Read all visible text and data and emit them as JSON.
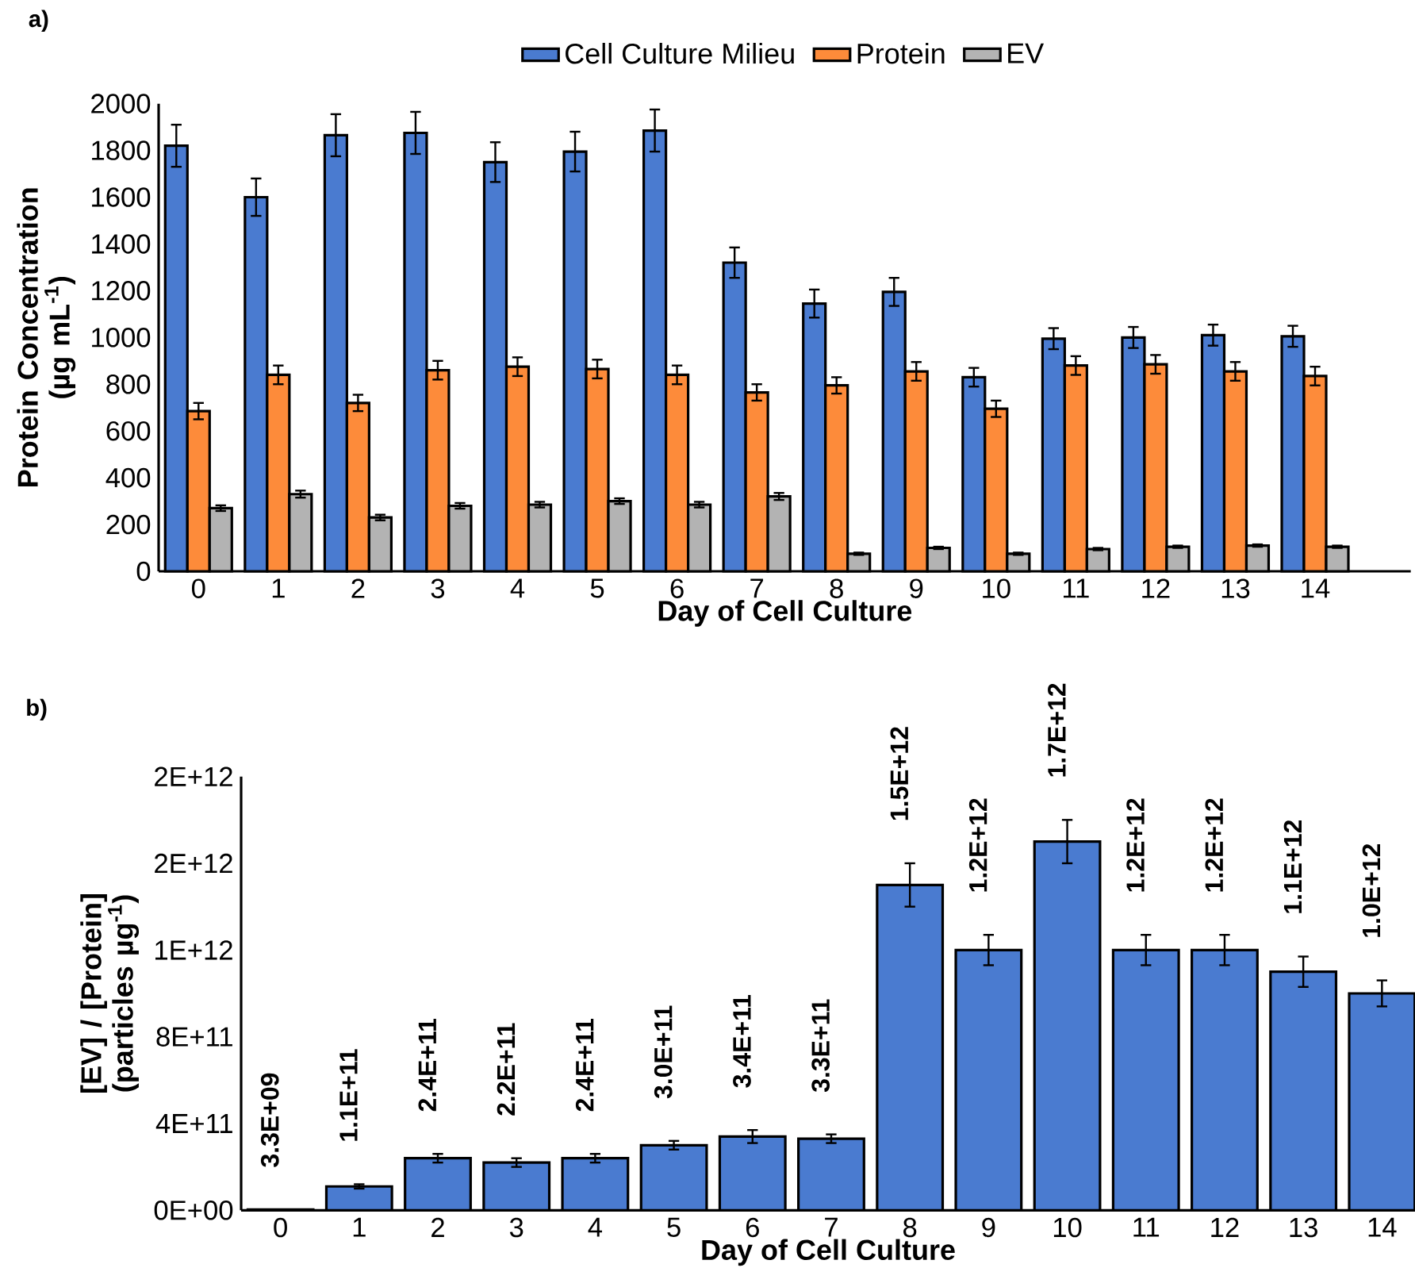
{
  "chart_data": [
    {
      "type": "bar",
      "title": "a)",
      "xlabel": "Day of Cell Culture",
      "ylabel": "Protein Concentration (µg mL$^{-1}$)",
      "categories": [
        "0",
        "1",
        "2",
        "3",
        "4",
        "5",
        "6",
        "7",
        "8",
        "9",
        "10",
        "11",
        "12",
        "13",
        "14"
      ],
      "series": [
        {
          "name": "Cell Culture Milieu",
          "color": "#4a7bd0",
          "values": [
            1820,
            1600,
            1865,
            1875,
            1750,
            1795,
            1885,
            1320,
            1145,
            1195,
            830,
            995,
            1000,
            1010,
            1005
          ],
          "errors": [
            90,
            80,
            90,
            90,
            85,
            85,
            90,
            65,
            60,
            60,
            40,
            45,
            45,
            45,
            45
          ]
        },
        {
          "name": "Protein",
          "color": "#fd8b3a",
          "values": [
            685,
            840,
            720,
            860,
            875,
            865,
            840,
            765,
            795,
            855,
            695,
            880,
            885,
            855,
            835
          ],
          "errors": [
            35,
            40,
            35,
            40,
            40,
            40,
            40,
            35,
            35,
            40,
            35,
            40,
            40,
            40,
            40
          ]
        },
        {
          "name": "EV",
          "color": "#b3b3b3",
          "values": [
            270,
            330,
            230,
            280,
            285,
            300,
            285,
            320,
            75,
            100,
            75,
            95,
            105,
            110,
            105
          ],
          "errors": [
            12,
            15,
            12,
            12,
            12,
            12,
            12,
            15,
            5,
            5,
            5,
            5,
            5,
            5,
            5
          ]
        }
      ],
      "ylim": [
        0,
        2000
      ],
      "yticks": [
        0,
        200,
        400,
        600,
        800,
        1000,
        1200,
        1400,
        1600,
        1800,
        2000
      ],
      "legend": "top"
    },
    {
      "type": "bar",
      "title": "b)",
      "xlabel": "Day of Cell Culture",
      "ylabel": "[EV] / [Protein] (particles µg$^{-1}$)",
      "categories": [
        "0",
        "1",
        "2",
        "3",
        "4",
        "5",
        "6",
        "7",
        "8",
        "9",
        "10",
        "11",
        "12",
        "13",
        "14"
      ],
      "values": [
        3300000000.0,
        110000000000.0,
        240000000000.0,
        220000000000.0,
        240000000000.0,
        300000000000.0,
        340000000000.0,
        330000000000.0,
        1500000000000.0,
        1200000000000.0,
        1700000000000.0,
        1200000000000.0,
        1200000000000.0,
        1100000000000.0,
        1000000000000.0
      ],
      "errors": [
        0,
        10000000000.0,
        20000000000.0,
        20000000000.0,
        20000000000.0,
        20000000000.0,
        30000000000.0,
        20000000000.0,
        100000000000.0,
        70000000000.0,
        100000000000.0,
        70000000000.0,
        70000000000.0,
        70000000000.0,
        60000000000.0
      ],
      "value_labels": [
        "3.3E+09",
        "1.1E+11",
        "2.4E+11",
        "2.2E+11",
        "2.4E+11",
        "3.0E+11",
        "3.4E+11",
        "3.3E+11",
        "1.5E+12",
        "1.2E+12",
        "1.7E+12",
        "1.2E+12",
        "1.2E+12",
        "1.1E+12",
        "1.0E+12"
      ],
      "color": "#4a7bd0",
      "ylim": [
        0,
        2000000000000
      ],
      "yticks": [
        {
          "value": 0,
          "label": "0E+00"
        },
        {
          "value": 400000000000,
          "label": "4E+11"
        },
        {
          "value": 800000000000,
          "label": "8E+11"
        },
        {
          "value": 1200000000000,
          "label": "1E+12"
        },
        {
          "value": 1600000000000,
          "label": "2E+12"
        },
        {
          "value": 2000000000000,
          "label": "2E+12"
        }
      ]
    }
  ]
}
